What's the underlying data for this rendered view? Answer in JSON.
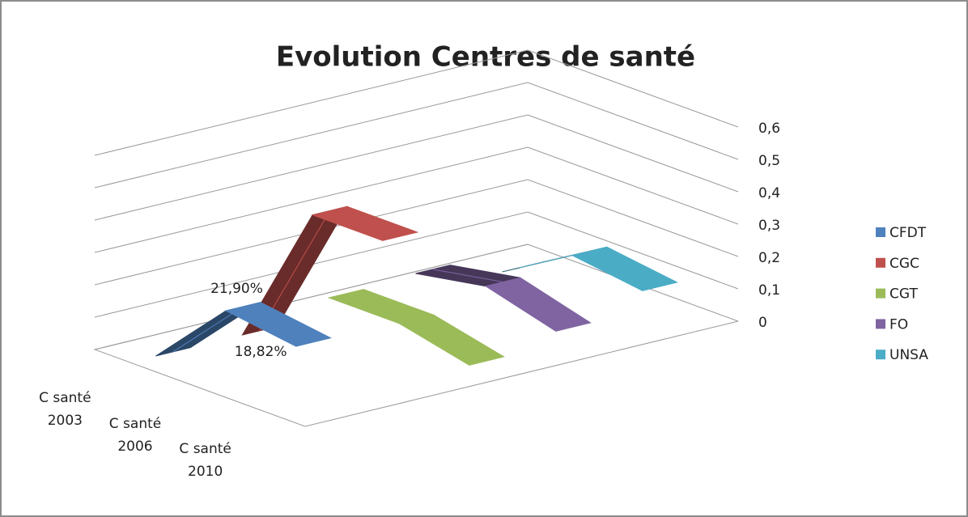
{
  "chart_data": {
    "type": "line3d",
    "title": "Evolution Centres de santé",
    "categories": [
      "C santé 2003",
      "C santé 2006",
      "C santé 2010"
    ],
    "series": [
      {
        "name": "CFDT",
        "color": "#4f81bd",
        "values": [
          0,
          0.219,
          0.1882
        ],
        "value_labels": [
          null,
          "21,90%",
          "18,82%"
        ]
      },
      {
        "name": "CGC",
        "color": "#c0504d",
        "values": [
          0,
          0.45,
          0.45
        ]
      },
      {
        "name": "CGT",
        "color": "#9bbb59",
        "values": [
          0.05,
          0.05,
          0
        ]
      },
      {
        "name": "FO",
        "color": "#8064a2",
        "values": [
          0.06,
          0.1,
          0.04
        ]
      },
      {
        "name": "UNSA",
        "color": "#4bacc6",
        "values": [
          0,
          0.13,
          0.1
        ]
      }
    ],
    "ylim": [
      0,
      0.6
    ],
    "yticks": [
      0,
      {
        "value": 0.1,
        "label": "0,1"
      },
      {
        "value": 0.2,
        "label": "0,2"
      },
      {
        "value": 0.3,
        "label": "0,3"
      },
      {
        "value": 0.4,
        "label": "0,4"
      },
      {
        "value": 0.5,
        "label": "0,5"
      },
      {
        "value": 0.6,
        "label": "0,6"
      }
    ],
    "grid": true,
    "legend": "right"
  }
}
